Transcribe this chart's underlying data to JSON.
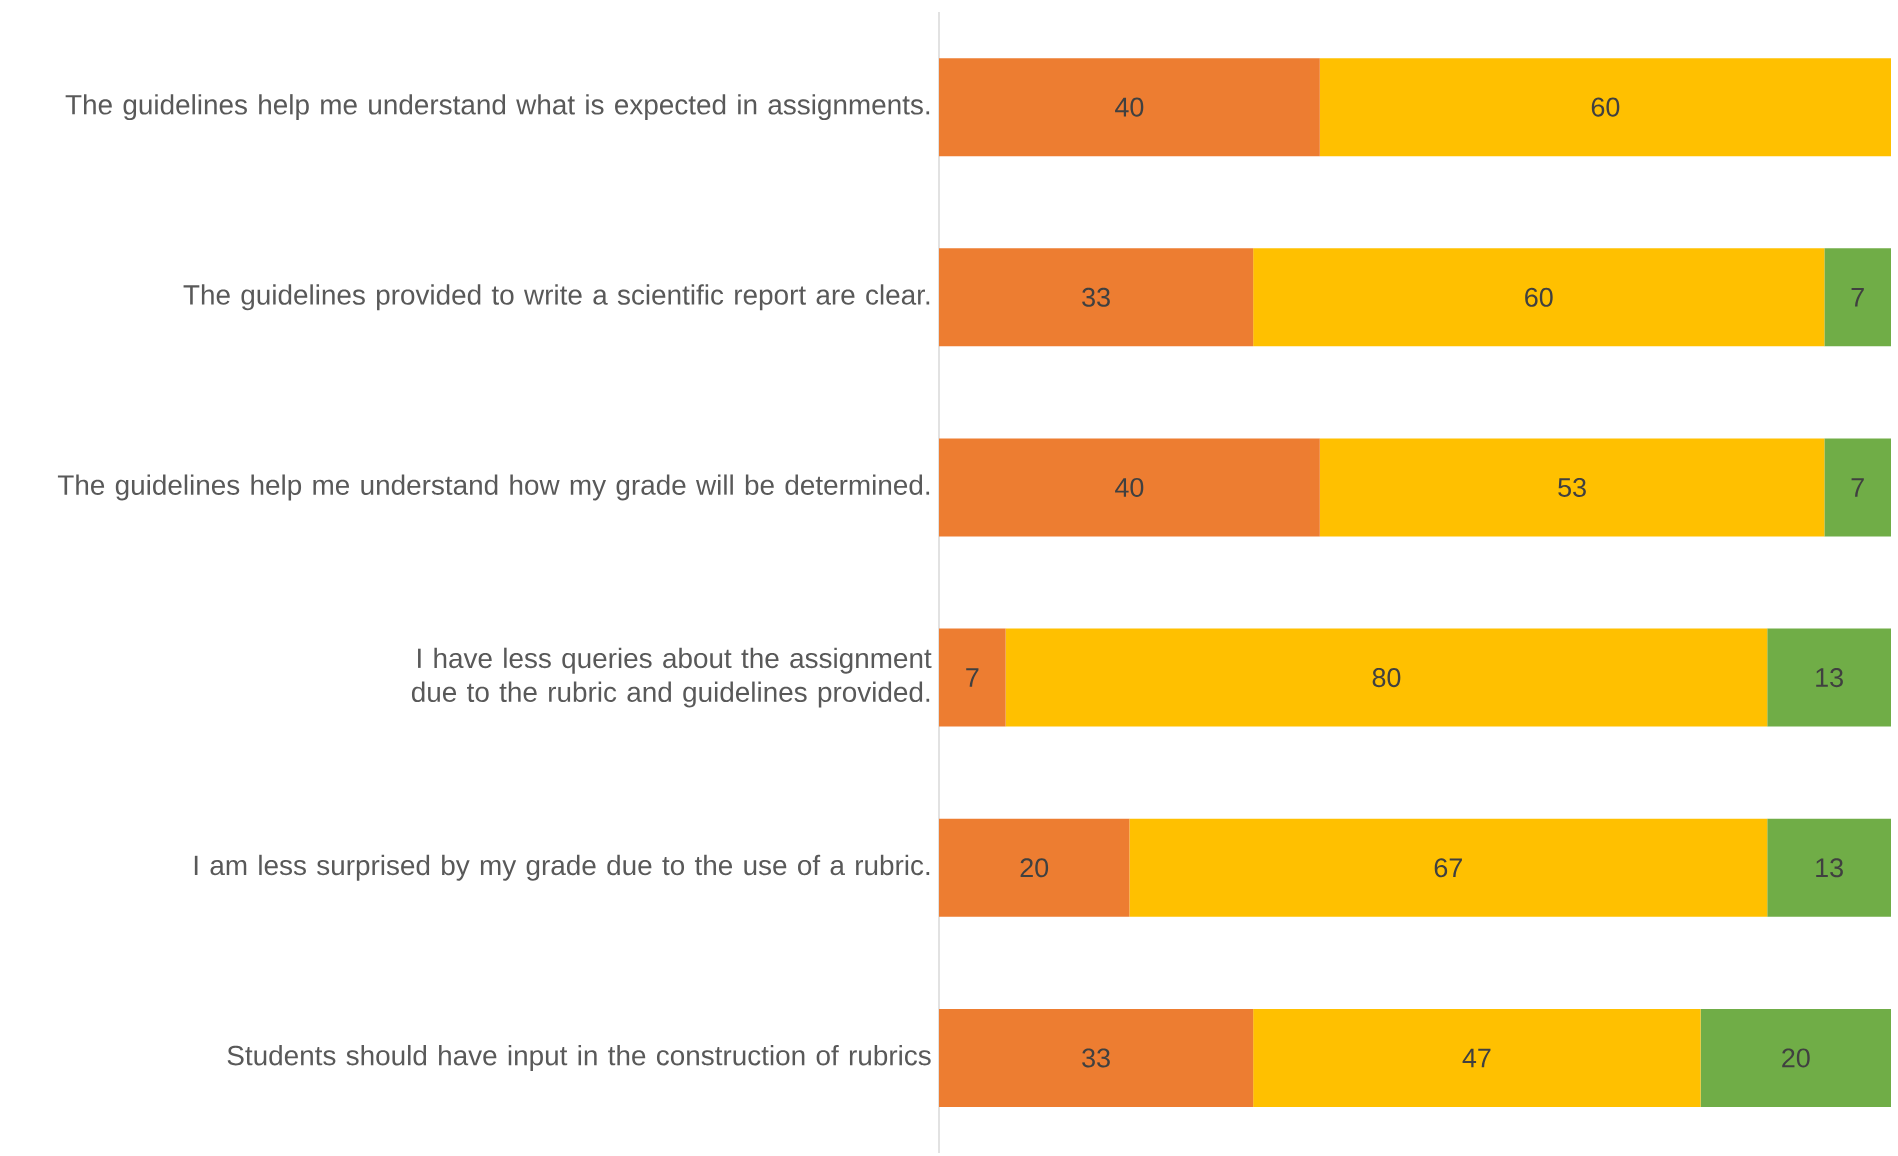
{
  "chart_data": {
    "type": "bar",
    "orientation": "horizontal",
    "stacked": true,
    "data_labels": true,
    "categories": [
      "The guidelines help me understand what is expected in assignments.",
      "The guidelines provided to write a scientific report are clear.",
      "The guidelines help me understand how my grade will be determined.",
      "I have less queries about the assignment due to the rubric and guidelines provided.",
      "I am less surprised by my grade due to the use of a rubric.",
      "Students should have input in the construction of rubrics"
    ],
    "series": [
      {
        "color": "#ed7d31",
        "values": [
          40,
          33,
          40,
          7,
          20,
          33
        ]
      },
      {
        "color": "#ffc000",
        "values": [
          60,
          60,
          53,
          80,
          67,
          47
        ]
      },
      {
        "color": "#70ad47",
        "values": [
          null,
          7,
          7,
          13,
          13,
          20
        ]
      }
    ]
  }
}
